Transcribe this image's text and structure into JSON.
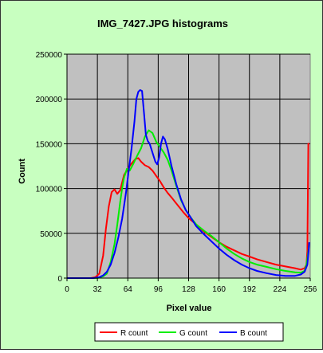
{
  "chart_data": {
    "type": "line",
    "title": "IMG_7427.JPG histograms",
    "xlabel": "Pixel value",
    "ylabel": "Count",
    "xlim": [
      0,
      256
    ],
    "ylim": [
      0,
      250000
    ],
    "xticks": [
      0,
      32,
      64,
      96,
      128,
      160,
      192,
      224,
      256
    ],
    "yticks": [
      0,
      50000,
      100000,
      150000,
      200000,
      250000
    ],
    "grid": true,
    "legend": "bottom",
    "plot_background": "#c0c0c0",
    "chart_background": "#c8ffc0",
    "series": [
      {
        "name": "R count",
        "color": "#ff0000",
        "points": [
          [
            0,
            0
          ],
          [
            25,
            0
          ],
          [
            30,
            1000
          ],
          [
            34,
            5000
          ],
          [
            38,
            25000
          ],
          [
            41,
            55000
          ],
          [
            44,
            80000
          ],
          [
            47,
            96000
          ],
          [
            50,
            99000
          ],
          [
            53,
            94000
          ],
          [
            56,
            98000
          ],
          [
            60,
            115000
          ],
          [
            64,
            122000
          ],
          [
            68,
            128000
          ],
          [
            72,
            133000
          ],
          [
            75,
            134000
          ],
          [
            78,
            130000
          ],
          [
            82,
            126000
          ],
          [
            86,
            124000
          ],
          [
            90,
            120000
          ],
          [
            94,
            114000
          ],
          [
            98,
            108000
          ],
          [
            102,
            101000
          ],
          [
            106,
            95000
          ],
          [
            110,
            90000
          ],
          [
            116,
            82000
          ],
          [
            122,
            74000
          ],
          [
            128,
            67000
          ],
          [
            136,
            60000
          ],
          [
            144,
            52000
          ],
          [
            152,
            46000
          ],
          [
            160,
            40000
          ],
          [
            168,
            35000
          ],
          [
            176,
            31000
          ],
          [
            184,
            27000
          ],
          [
            192,
            24000
          ],
          [
            200,
            21000
          ],
          [
            210,
            18000
          ],
          [
            220,
            15000
          ],
          [
            230,
            13000
          ],
          [
            240,
            11000
          ],
          [
            246,
            9500
          ],
          [
            250,
            11000
          ],
          [
            252,
            15000
          ],
          [
            253,
            30000
          ],
          [
            254,
            150000
          ],
          [
            255,
            150000
          ]
        ]
      },
      {
        "name": "G count",
        "color": "#00ee00",
        "points": [
          [
            0,
            0
          ],
          [
            32,
            0
          ],
          [
            38,
            2000
          ],
          [
            42,
            5000
          ],
          [
            46,
            18000
          ],
          [
            50,
            38000
          ],
          [
            53,
            60000
          ],
          [
            56,
            85000
          ],
          [
            58,
            100000
          ],
          [
            60,
            112000
          ],
          [
            63,
            122000
          ],
          [
            66,
            120000
          ],
          [
            70,
            128000
          ],
          [
            74,
            137000
          ],
          [
            78,
            145000
          ],
          [
            82,
            158000
          ],
          [
            86,
            165000
          ],
          [
            90,
            162000
          ],
          [
            94,
            152000
          ],
          [
            98,
            146000
          ],
          [
            102,
            140000
          ],
          [
            106,
            132000
          ],
          [
            110,
            120000
          ],
          [
            115,
            103000
          ],
          [
            120,
            87000
          ],
          [
            125,
            76000
          ],
          [
            130,
            68000
          ],
          [
            136,
            60000
          ],
          [
            144,
            53000
          ],
          [
            152,
            47000
          ],
          [
            160,
            40000
          ],
          [
            168,
            33000
          ],
          [
            176,
            27000
          ],
          [
            184,
            22000
          ],
          [
            192,
            18000
          ],
          [
            200,
            15000
          ],
          [
            210,
            12500
          ],
          [
            220,
            10000
          ],
          [
            230,
            8000
          ],
          [
            240,
            6500
          ],
          [
            246,
            6000
          ],
          [
            250,
            8000
          ],
          [
            252,
            15000
          ],
          [
            254,
            30000
          ],
          [
            255,
            40000
          ]
        ]
      },
      {
        "name": "B count",
        "color": "#0000ff",
        "points": [
          [
            0,
            0
          ],
          [
            28,
            0
          ],
          [
            34,
            1000
          ],
          [
            38,
            3000
          ],
          [
            42,
            7000
          ],
          [
            46,
            15000
          ],
          [
            50,
            28000
          ],
          [
            54,
            45000
          ],
          [
            58,
            66000
          ],
          [
            62,
            95000
          ],
          [
            65,
            120000
          ],
          [
            68,
            145000
          ],
          [
            71,
            175000
          ],
          [
            73,
            200000
          ],
          [
            75,
            208000
          ],
          [
            77,
            210000
          ],
          [
            79,
            209000
          ],
          [
            81,
            185000
          ],
          [
            83,
            160000
          ],
          [
            85,
            153000
          ],
          [
            87,
            150000
          ],
          [
            90,
            140000
          ],
          [
            93,
            130000
          ],
          [
            95,
            127000
          ],
          [
            97,
            135000
          ],
          [
            99,
            150000
          ],
          [
            101,
            158000
          ],
          [
            103,
            155000
          ],
          [
            106,
            144000
          ],
          [
            110,
            125000
          ],
          [
            115,
            105000
          ],
          [
            120,
            88000
          ],
          [
            125,
            76000
          ],
          [
            130,
            68000
          ],
          [
            136,
            58000
          ],
          [
            144,
            49000
          ],
          [
            152,
            41000
          ],
          [
            160,
            33000
          ],
          [
            168,
            26000
          ],
          [
            176,
            20000
          ],
          [
            184,
            15000
          ],
          [
            192,
            11000
          ],
          [
            200,
            8000
          ],
          [
            210,
            5500
          ],
          [
            220,
            3500
          ],
          [
            230,
            2500
          ],
          [
            240,
            2500
          ],
          [
            246,
            4000
          ],
          [
            250,
            7000
          ],
          [
            253,
            15000
          ],
          [
            255,
            40000
          ]
        ]
      }
    ]
  }
}
